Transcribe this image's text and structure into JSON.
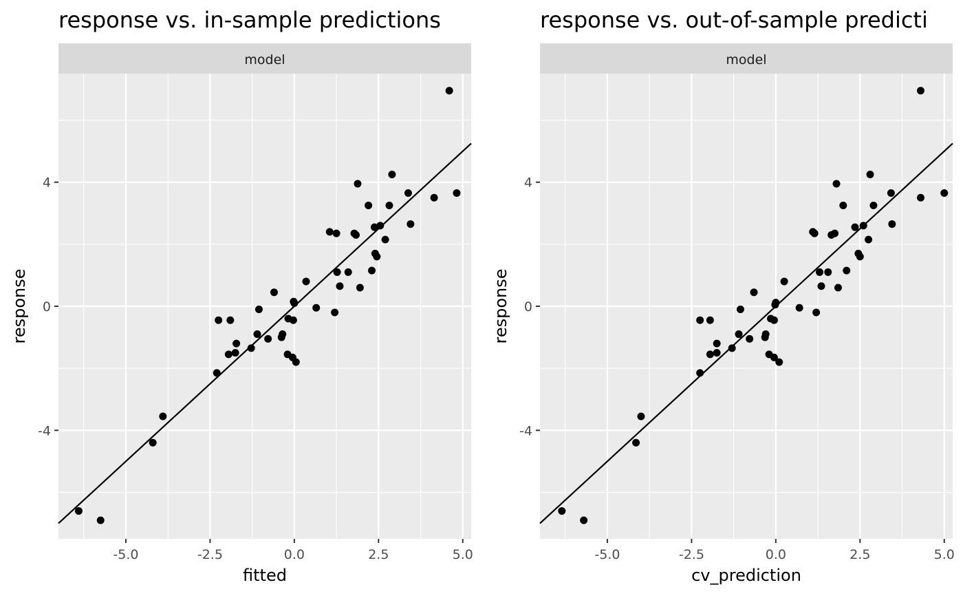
{
  "chart_data": [
    {
      "type": "scatter",
      "title": "response vs. in-sample predictions",
      "facet_label": "model",
      "xlabel": "fitted",
      "ylabel": "response",
      "xlim": [
        -7.0,
        5.25
      ],
      "ylim": [
        -7.5,
        7.5
      ],
      "x_ticks": [
        -5.0,
        -2.5,
        0.0,
        2.5,
        5.0
      ],
      "x_tick_labels": [
        "-5.0",
        "-2.5",
        "0.0",
        "2.5",
        "5.0"
      ],
      "y_ticks": [
        -4,
        0,
        4
      ],
      "y_tick_labels": [
        "-4",
        "0",
        "4"
      ],
      "grid": true,
      "reference_line": {
        "slope": 1.0,
        "intercept": 0.0
      },
      "points": [
        [
          -6.4,
          -6.6
        ],
        [
          -5.75,
          -6.9
        ],
        [
          -4.2,
          -4.4
        ],
        [
          -3.9,
          -3.55
        ],
        [
          -2.3,
          -2.15
        ],
        [
          -2.25,
          -0.45
        ],
        [
          -1.95,
          -1.55
        ],
        [
          -1.9,
          -0.45
        ],
        [
          -1.75,
          -1.5
        ],
        [
          -1.72,
          -1.2
        ],
        [
          -1.28,
          -1.35
        ],
        [
          -1.1,
          -0.9
        ],
        [
          -1.05,
          -0.1
        ],
        [
          -0.78,
          -1.05
        ],
        [
          -0.6,
          0.45
        ],
        [
          -0.38,
          -1.0
        ],
        [
          -0.35,
          -0.9
        ],
        [
          -0.2,
          -1.55
        ],
        [
          -0.18,
          -0.4
        ],
        [
          -0.05,
          -1.65
        ],
        [
          -0.03,
          -0.45
        ],
        [
          -0.02,
          0.15
        ],
        [
          0.0,
          0.1
        ],
        [
          0.05,
          -1.8
        ],
        [
          0.35,
          0.8
        ],
        [
          0.65,
          -0.05
        ],
        [
          1.05,
          2.4
        ],
        [
          1.2,
          -0.2
        ],
        [
          1.25,
          2.35
        ],
        [
          1.27,
          1.1
        ],
        [
          1.35,
          0.65
        ],
        [
          1.6,
          1.1
        ],
        [
          1.78,
          2.35
        ],
        [
          1.83,
          2.3
        ],
        [
          1.88,
          3.95
        ],
        [
          1.95,
          0.6
        ],
        [
          2.2,
          3.25
        ],
        [
          2.3,
          1.15
        ],
        [
          2.38,
          2.55
        ],
        [
          2.4,
          1.7
        ],
        [
          2.45,
          1.6
        ],
        [
          2.55,
          2.6
        ],
        [
          2.7,
          2.15
        ],
        [
          2.82,
          3.25
        ],
        [
          2.9,
          4.25
        ],
        [
          3.38,
          3.65
        ],
        [
          3.45,
          2.65
        ],
        [
          4.15,
          3.5
        ],
        [
          4.6,
          6.95
        ],
        [
          4.82,
          3.65
        ]
      ]
    },
    {
      "type": "scatter",
      "title": "response vs. out-of-sample predicti",
      "facet_label": "model",
      "xlabel": "cv_prediction",
      "ylabel": "response",
      "xlim": [
        -7.0,
        5.25
      ],
      "ylim": [
        -7.5,
        7.5
      ],
      "x_ticks": [
        -5.0,
        -2.5,
        0.0,
        2.5,
        5.0
      ],
      "x_tick_labels": [
        "-5.0",
        "-2.5",
        "0.0",
        "2.5",
        "5.0"
      ],
      "y_ticks": [
        -4,
        0,
        4
      ],
      "y_tick_labels": [
        "-4",
        "0",
        "4"
      ],
      "grid": true,
      "reference_line": {
        "slope": 1.0,
        "intercept": 0.0
      },
      "points": [
        [
          -6.35,
          -6.6
        ],
        [
          -5.7,
          -6.9
        ],
        [
          -4.15,
          -4.4
        ],
        [
          -4.0,
          -3.55
        ],
        [
          -2.25,
          -2.15
        ],
        [
          -2.25,
          -0.45
        ],
        [
          -1.95,
          -1.55
        ],
        [
          -1.95,
          -0.45
        ],
        [
          -1.75,
          -1.5
        ],
        [
          -1.75,
          -1.2
        ],
        [
          -1.3,
          -1.35
        ],
        [
          -1.1,
          -0.9
        ],
        [
          -1.05,
          -0.1
        ],
        [
          -0.78,
          -1.05
        ],
        [
          -0.65,
          0.45
        ],
        [
          -0.32,
          -1.0
        ],
        [
          -0.3,
          -0.9
        ],
        [
          -0.2,
          -1.55
        ],
        [
          -0.15,
          -0.4
        ],
        [
          -0.05,
          -1.65
        ],
        [
          -0.05,
          -0.45
        ],
        [
          -0.02,
          0.05
        ],
        [
          0.0,
          0.12
        ],
        [
          0.1,
          -1.8
        ],
        [
          0.25,
          0.8
        ],
        [
          0.7,
          -0.05
        ],
        [
          1.1,
          2.4
        ],
        [
          1.2,
          -0.2
        ],
        [
          1.15,
          2.35
        ],
        [
          1.3,
          1.1
        ],
        [
          1.35,
          0.65
        ],
        [
          1.55,
          1.1
        ],
        [
          1.65,
          2.3
        ],
        [
          1.75,
          2.35
        ],
        [
          1.8,
          3.95
        ],
        [
          1.85,
          0.6
        ],
        [
          2.0,
          3.25
        ],
        [
          2.1,
          1.15
        ],
        [
          2.35,
          2.55
        ],
        [
          2.45,
          1.7
        ],
        [
          2.5,
          1.6
        ],
        [
          2.6,
          2.6
        ],
        [
          2.75,
          2.15
        ],
        [
          2.8,
          4.25
        ],
        [
          2.9,
          3.25
        ],
        [
          3.42,
          3.65
        ],
        [
          3.45,
          2.65
        ],
        [
          4.3,
          3.5
        ],
        [
          4.3,
          6.95
        ],
        [
          5.0,
          3.65
        ]
      ]
    }
  ]
}
